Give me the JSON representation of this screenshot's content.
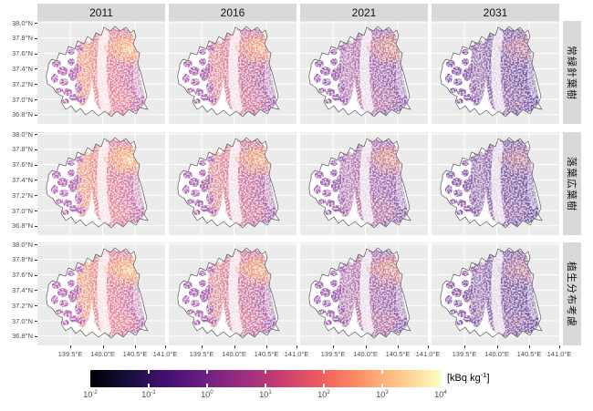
{
  "figure": {
    "background": "#ffffff",
    "title": ""
  },
  "facets": {
    "columns": [
      "2011",
      "2016",
      "2021",
      "2031"
    ],
    "rows": [
      "常緑針葉樹",
      "落葉広葉樹",
      "植生分布考慮"
    ]
  },
  "axes": {
    "y_ticks": [
      "38.0°N",
      "37.8°N",
      "37.6°N",
      "37.4°N",
      "37.2°N",
      "37.0°N",
      "36.8°N"
    ],
    "x_ticks": [
      "139.5°E",
      "140.0°E",
      "140.5°E",
      "141.0°E"
    ]
  },
  "legend": {
    "unit_prefix": "[kBq kg",
    "unit_sup": "-1",
    "unit_suffix": "]",
    "tick_base": "10",
    "tick_exponents": [
      "-2",
      "-1",
      "0",
      "1",
      "2",
      "3",
      "4"
    ],
    "colormap": [
      "#000004",
      "#180f3e",
      "#451077",
      "#721f81",
      "#9f2f7f",
      "#cd4071",
      "#f1605d",
      "#fd9567",
      "#feca8d",
      "#fcfdbf"
    ]
  },
  "panel_style": {
    "background": "#ebebeb",
    "gridline": "#ffffff",
    "strip_background": "#d9d9d9",
    "outline": "#595959",
    "axis_text": "#4d4d4d"
  },
  "map_colors": {
    "2011": {
      "east": [
        "#e8928f",
        "#dd7f9d",
        "#b36cb0"
      ],
      "band": "#eb9a84",
      "west": "#b266ae",
      "south": "#e78f9b",
      "south_opacity": 0.6,
      "hot_core": "#fbd99b",
      "hot_mid": "#f5a472",
      "hot_opacity": 0.95
    },
    "2016": {
      "east": [
        "#db8a9d",
        "#c9749f",
        "#9e63ad"
      ],
      "band": "#db8a94",
      "west": "#a862ab",
      "south": "#d9829f",
      "south_opacity": 0.55,
      "hot_core": "#f8c48a",
      "hot_mid": "#f09b74",
      "hot_opacity": 0.85
    },
    "2021": {
      "east": [
        "#b377ab",
        "#a56cab",
        "#8a5fa8"
      ],
      "band": "#b47bb0",
      "west": "#9c60a9",
      "south": "#c47da4",
      "south_opacity": 0.5,
      "hot_core": "#f3b285",
      "hot_mid": "#e08b80",
      "hot_opacity": 0.7
    },
    "2031": {
      "east": [
        "#9169a8",
        "#8260a4",
        "#6f55a0"
      ],
      "band": "#9671ac",
      "west": "#8a5ba4",
      "south": "#a973a6",
      "south_opacity": 0.45,
      "hot_core": "#e8a487",
      "hot_mid": "#c77f93",
      "hot_opacity": 0.55
    }
  },
  "chart_data": {
    "type": "heatmap",
    "title": "",
    "facet_columns": [
      "2011",
      "2016",
      "2021",
      "2031"
    ],
    "facet_rows": [
      "常緑針葉樹",
      "落葉広葉樹",
      "植生分布考慮"
    ],
    "x_ticks": [
      "139.5°E",
      "140.0°E",
      "140.5°E",
      "141.0°E"
    ],
    "y_ticks": [
      "38.0°N",
      "37.8°N",
      "37.6°N",
      "37.4°N",
      "37.2°N",
      "37.0°N",
      "36.8°N"
    ],
    "x_range_deg_e": [
      139.2,
      141.05
    ],
    "y_range_deg_n": [
      36.78,
      38.02
    ],
    "color_scale": {
      "unit": "kBq kg⁻¹",
      "scale": "log10",
      "domain": [
        0.01,
        10000
      ],
      "legend_ticks": [
        "10^-2",
        "10^-1",
        "10^0",
        "10^1",
        "10^2",
        "10^3",
        "10^4"
      ],
      "palette": "magma-like: black → dark purple → magenta → orange → pale yellow"
    },
    "observations": "Twelve faceted raster maps of a prefecture-shaped region (4 years × 3 vegetation categories). 2011 panels are widely pink–orange (≈10–10² kBq kg⁻¹) with a bright orange hotspot (≈10³–10⁴) near the northeast coast; 2016 slightly more purple; 2021 mostly medium purple (≈1–10) with a fading hotspot; 2031 dark purple (≈0.1–10) with only a faint warm streak. The western third is mostly blank (no raster) with scattered purple patches; all three row categories look nearly identical within a year."
  }
}
